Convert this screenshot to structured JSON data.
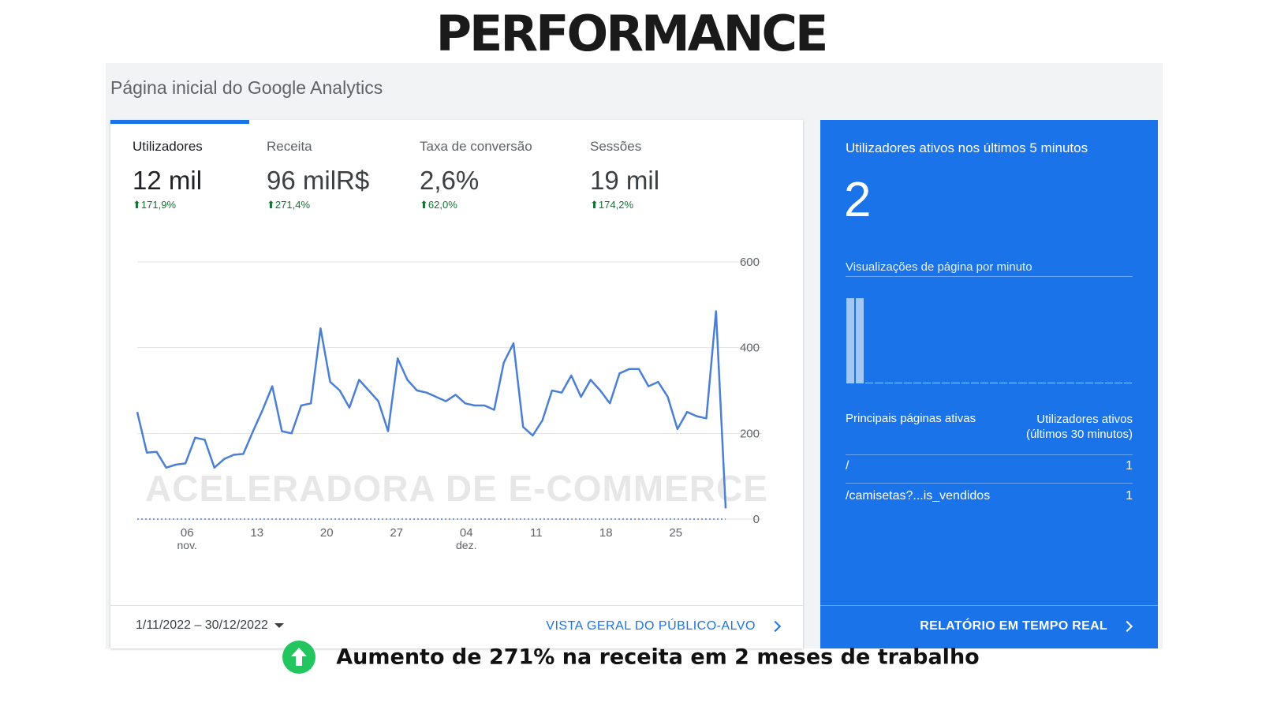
{
  "page_title": "PERFORMANCE",
  "header": {
    "title": "Página inicial do Google Analytics"
  },
  "metrics": [
    {
      "label": "Utilizadores",
      "value": "12 mil",
      "delta": "171,9%",
      "active": true
    },
    {
      "label": "Receita",
      "value": "96 milR$",
      "delta": "271,4%",
      "active": false
    },
    {
      "label": "Taxa de conversão",
      "value": "2,6%",
      "delta": "62,0%",
      "active": false
    },
    {
      "label": "Sessões",
      "value": "19 mil",
      "delta": "174,2%",
      "active": false
    }
  ],
  "watermark": "ACELERADORA DE E-COMMERCE",
  "footer": {
    "date_range": "1/11/2022 – 30/12/2022",
    "audience_link": "VISTA GERAL DO PÚBLICO-ALVO"
  },
  "realtime": {
    "title": "Utilizadores ativos nos últimos 5 minutos",
    "value": "2",
    "pageviews_label": "Visualizações de página por minuto",
    "pageviews_per_minute": [
      0,
      0,
      0,
      0,
      0,
      0,
      0,
      0,
      0,
      0,
      0,
      0,
      0,
      0,
      0,
      0,
      0,
      0,
      0,
      0,
      0,
      0,
      0,
      0,
      0,
      0,
      0,
      0,
      0,
      0
    ],
    "pageviews_levels": [
      1,
      1,
      0,
      0,
      0,
      0,
      0,
      0,
      0,
      0,
      0,
      0,
      0,
      0,
      0,
      0,
      0,
      0,
      0,
      0,
      0,
      0,
      0,
      0,
      0,
      0,
      0,
      0,
      0,
      0
    ],
    "table_headers": {
      "pages": "Principais páginas ativas",
      "users": "Utilizadores ativos (últimos 30 minutos)"
    },
    "rows": [
      {
        "path": "/",
        "count": "1"
      },
      {
        "path": "/camisetas?...is_vendidos",
        "count": "1"
      }
    ],
    "report_link": "RELATÓRIO EM TEMPO REAL"
  },
  "bottom_note": "Aumento de 271%  na receita em 2 meses de trabalho",
  "colors": {
    "accent": "#1a73e8",
    "positive": "#137333",
    "current_series": "#4a7fd4",
    "previous_series": "#7ba0da"
  },
  "chart_data": {
    "type": "line",
    "x_start": "2022-11-01",
    "x_end": "2022-12-30",
    "x_tick_labels": [
      {
        "label": "06",
        "sub": "nov.",
        "date": "2022-11-06"
      },
      {
        "label": "13",
        "sub": "",
        "date": "2022-11-13"
      },
      {
        "label": "20",
        "sub": "",
        "date": "2022-11-20"
      },
      {
        "label": "27",
        "sub": "",
        "date": "2022-11-27"
      },
      {
        "label": "04",
        "sub": "dez.",
        "date": "2022-12-04"
      },
      {
        "label": "11",
        "sub": "",
        "date": "2022-12-11"
      },
      {
        "label": "18",
        "sub": "",
        "date": "2022-12-18"
      },
      {
        "label": "25",
        "sub": "",
        "date": "2022-12-25"
      }
    ],
    "y_ticks": [
      "600",
      "400",
      "200",
      "0"
    ],
    "ylim": [
      0,
      600
    ],
    "grid": true,
    "series": [
      {
        "name": "",
        "style": "solid",
        "values": [
          250,
          155,
          157,
          120,
          127,
          130,
          190,
          185,
          120,
          140,
          150,
          152,
          205,
          255,
          310,
          205,
          200,
          265,
          270,
          445,
          320,
          300,
          260,
          325,
          300,
          275,
          205,
          375,
          325,
          300,
          295,
          285,
          275,
          290,
          270,
          265,
          265,
          255,
          365,
          410,
          215,
          195,
          230,
          300,
          295,
          335,
          285,
          325,
          300,
          270,
          340,
          350,
          350,
          310,
          320,
          285,
          210,
          250,
          240,
          235,
          485,
          25
        ]
      },
      {
        "name": "",
        "style": "dotted",
        "values": [
          0,
          0,
          0,
          0,
          0,
          0,
          0,
          0,
          0,
          0,
          0,
          0,
          0,
          0,
          0,
          0,
          0,
          0,
          0,
          0,
          0,
          0,
          0,
          0,
          0,
          0,
          0,
          0,
          0,
          0,
          0,
          0,
          0,
          0,
          0,
          0,
          0,
          0,
          0,
          0,
          0,
          0,
          0,
          0,
          0,
          0,
          0,
          0,
          0,
          0,
          0,
          0,
          0,
          0,
          0,
          0,
          0,
          0,
          0,
          0,
          0,
          0
        ]
      }
    ]
  }
}
